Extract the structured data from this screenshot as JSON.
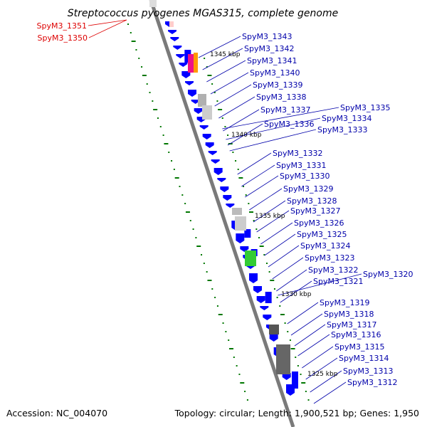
{
  "title": "Streptococcus pyogenes MGAS315, complete genome",
  "footer": {
    "accession": "Accession: NC_004070",
    "topology": "Topology: circular; Length: 1,900,521 bp; Genes: 1,950"
  },
  "colors": {
    "backbone": "#7a7a7a",
    "gene": "#0000ff",
    "label": "#0000aa",
    "highlight_label": "#dd0000",
    "tick": "#007700"
  },
  "kbp_marks": [
    "1345 kbp",
    "1340 kbp",
    "1335 kbp",
    "1330 kbp",
    "1325 kbp"
  ],
  "highlight_labels": [
    "SpyM3_1351",
    "SpyM3_1350"
  ],
  "gene_labels": [
    "SpyM3_1343",
    "SpyM3_1342",
    "SpyM3_1341",
    "SpyM3_1340",
    "SpyM3_1339",
    "SpyM3_1338",
    "SpyM3_1337",
    "SpyM3_1336",
    "SpyM3_1335",
    "SpyM3_1334",
    "SpyM3_1333",
    "SpyM3_1332",
    "SpyM3_1331",
    "SpyM3_1330",
    "SpyM3_1329",
    "SpyM3_1328",
    "SpyM3_1327",
    "SpyM3_1326",
    "SpyM3_1325",
    "SpyM3_1324",
    "SpyM3_1323",
    "SpyM3_1322",
    "SpyM3_1321",
    "SpyM3_1320",
    "SpyM3_1319",
    "SpyM3_1318",
    "SpyM3_1317",
    "SpyM3_1316",
    "SpyM3_1315",
    "SpyM3_1314",
    "SpyM3_1313",
    "SpyM3_1312"
  ]
}
